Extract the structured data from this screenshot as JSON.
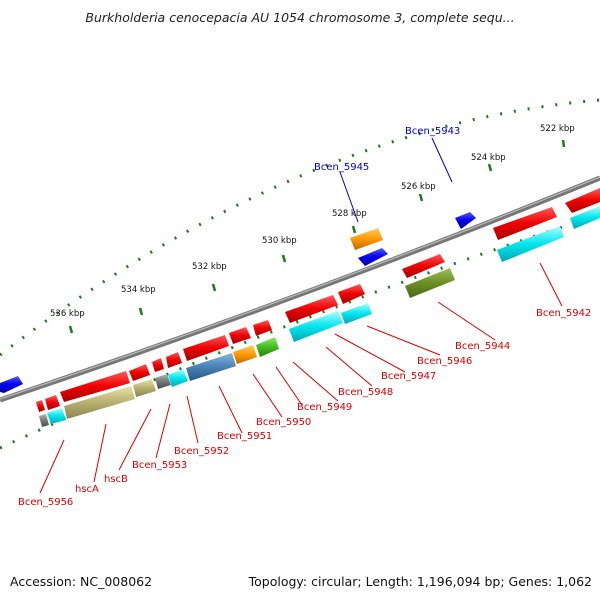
{
  "title": "Burkholderia cenocepacia AU 1054 chromosome 3, complete sequ...",
  "footer": {
    "accession": "Accession: NC_008062",
    "summary": "Topology: circular; Length: 1,196,094 bp; Genes: 1,062"
  },
  "scale_labels": [
    "522 kbp",
    "524 kbp",
    "526 kbp",
    "528 kbp",
    "530 kbp",
    "532 kbp",
    "534 kbp",
    "536 kbp"
  ],
  "gene_labels": [
    {
      "name": "Bcen_5943",
      "color": "#0000cc"
    },
    {
      "name": "Bcen_5945",
      "color": "#0000cc"
    },
    {
      "name": "Bcen_5942",
      "color": "#dd0000"
    },
    {
      "name": "Bcen_5944",
      "color": "#dd0000"
    },
    {
      "name": "Bcen_5946",
      "color": "#dd0000"
    },
    {
      "name": "Bcen_5947",
      "color": "#dd0000"
    },
    {
      "name": "Bcen_5948",
      "color": "#dd0000"
    },
    {
      "name": "Bcen_5949",
      "color": "#dd0000"
    },
    {
      "name": "Bcen_5950",
      "color": "#dd0000"
    },
    {
      "name": "Bcen_5951",
      "color": "#dd0000"
    },
    {
      "name": "Bcen_5952",
      "color": "#dd0000"
    },
    {
      "name": "Bcen_5953",
      "color": "#dd0000"
    },
    {
      "name": "hscB",
      "color": "#dd0000"
    },
    {
      "name": "hscA",
      "color": "#dd0000"
    },
    {
      "name": "Bcen_5956",
      "color": "#dd0000"
    }
  ],
  "colors": {
    "backbone": "#777777",
    "ticks": "#1f7a1f",
    "cds_forward": "#ee0000",
    "cds_reverse": "#ee0000",
    "trna": "#0000ee",
    "cog_info": "#00e5ee",
    "cog_khaki": "#b8b070",
    "cog_steel": "#4682b4",
    "cog_orange": "#ff9900",
    "cog_green": "#44bb22",
    "cog_olive": "#6b8e23",
    "cog_grey": "#777777"
  }
}
